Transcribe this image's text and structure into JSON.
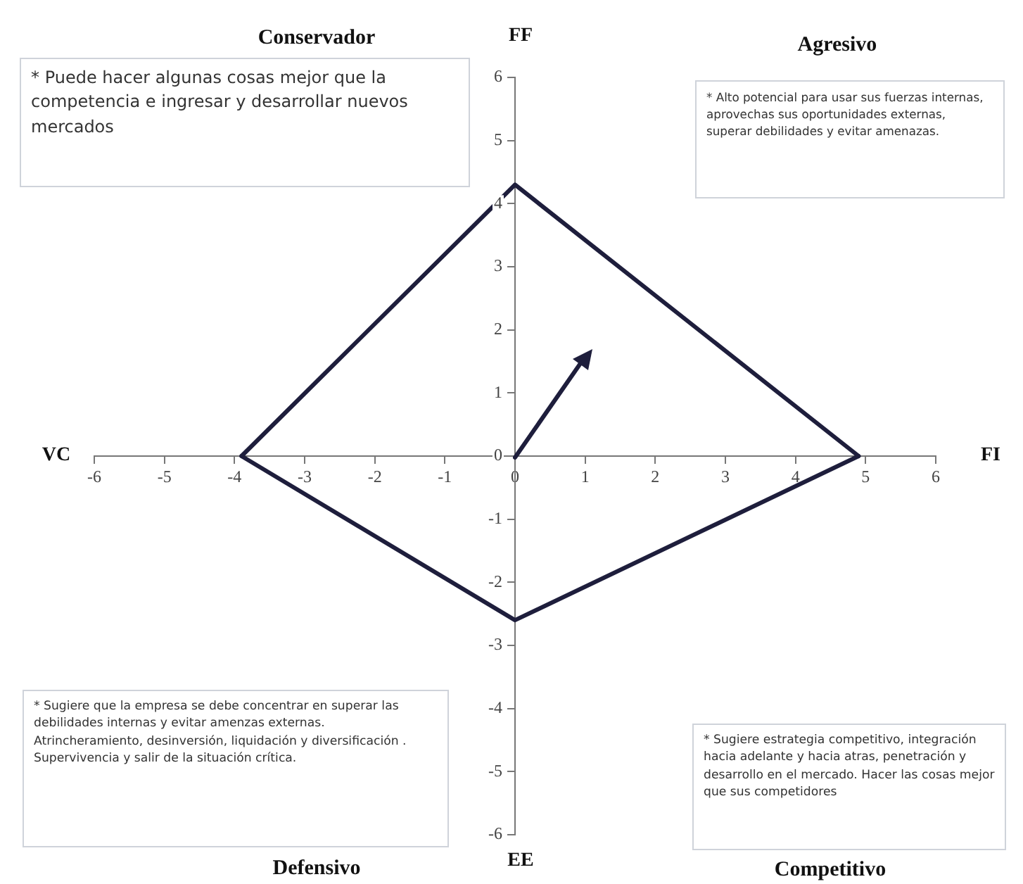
{
  "chart_data": {
    "type": "line",
    "x": [
      -3.9,
      0,
      4.9
    ],
    "series": [
      {
        "color": "#1e1e3c",
        "values": [
          0,
          4.3,
          0
        ]
      },
      {
        "color": "#1e1e3c",
        "values": [
          0,
          -2.6,
          0
        ]
      }
    ],
    "xlim": [
      -6,
      6
    ],
    "ylim": [
      -6,
      6
    ],
    "xticks": [
      -6,
      -5,
      -4,
      -3,
      -2,
      -1,
      0,
      1,
      2,
      3,
      4,
      5,
      6
    ],
    "yticks": [
      -6,
      -5,
      -4,
      -3,
      -2,
      -1,
      0,
      1,
      2,
      3,
      4,
      5,
      6
    ],
    "grid": false,
    "legend": false,
    "marker": "none",
    "line_style": "solid",
    "annotations": [
      "FF",
      "EE",
      "VC",
      "FI",
      "Conservador",
      "Agresivo",
      "Defensivo",
      "Competitivo",
      "* Puede hacer algunas cosas mejor que la competencia  e ingresar y desarrollar nuevos mercados",
      "* Alto potencial para usar sus fuerzas internas, aprovechas sus oportunidades externas, superar debilidades y evitar amenazas.",
      "* Sugiere que la empresa se debe concentrar en superar las debilidades internas y evitar amenzas externas.\nAtrincheramiento, desinversión, liquidación y diversificación . Supervivencia y salir de la situación crítica.",
      "* Sugiere estrategia competitivo, integración hacia adelante y hacia atras, penetración y desarrollo en el mercado. Hacer las cosas mejor que sus competidores"
    ]
  }
}
